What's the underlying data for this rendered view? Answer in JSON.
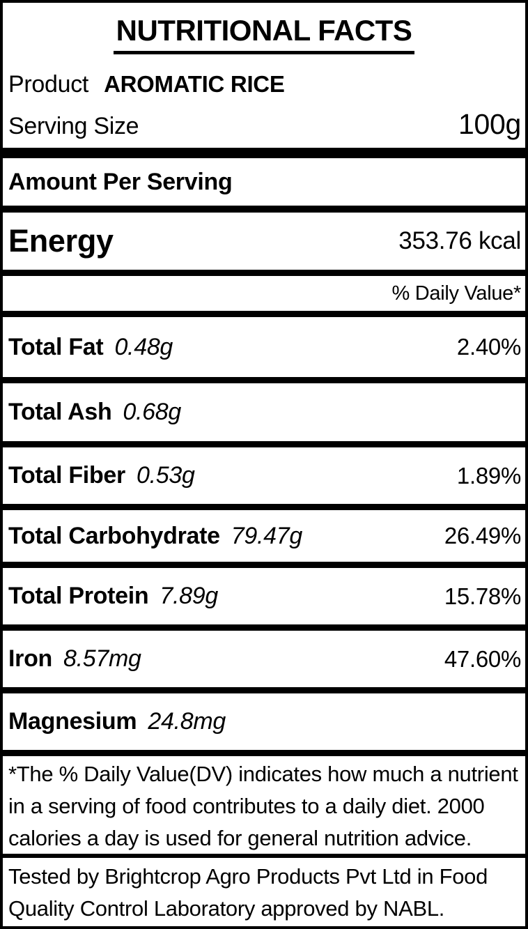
{
  "label": {
    "title": "NUTRITIONAL FACTS",
    "product_label": "Product",
    "product_name": "AROMATIC RICE",
    "serving_label": "Serving Size",
    "serving_value": "100g",
    "amount_heading": "Amount Per Serving",
    "energy": {
      "name": "Energy",
      "value": "353.76 kcal"
    },
    "daily_value_header": "% Daily Value*",
    "nutrients": [
      {
        "name": "Total Fat",
        "amount": "0.48g",
        "dv": "2.40%"
      },
      {
        "name": "Total Ash",
        "amount": "0.68g",
        "dv": ""
      },
      {
        "name": "Total Fiber",
        "amount": "0.53g",
        "dv": "1.89%"
      },
      {
        "name": "Total Carbohydrate",
        "amount": "79.47g",
        "dv": "26.49%"
      },
      {
        "name": "Total Protein",
        "amount": "7.89g",
        "dv": "15.78%"
      },
      {
        "name": "Iron",
        "amount": "8.57mg",
        "dv": "47.60%"
      },
      {
        "name": "Magnesium",
        "amount": "24.8mg",
        "dv": ""
      }
    ],
    "footnote": "*The % Daily Value(DV) indicates how much a nutrient in a serving of food contributes to a daily diet. 2000 calories a day is used for general nutrition advice.",
    "tested_by": "Tested by Brightcrop Agro Products Pvt Ltd in Food Quality Control Laboratory approved by NABL.",
    "colors": {
      "text": "#000000",
      "background": "#ffffff",
      "border": "#000000"
    }
  }
}
